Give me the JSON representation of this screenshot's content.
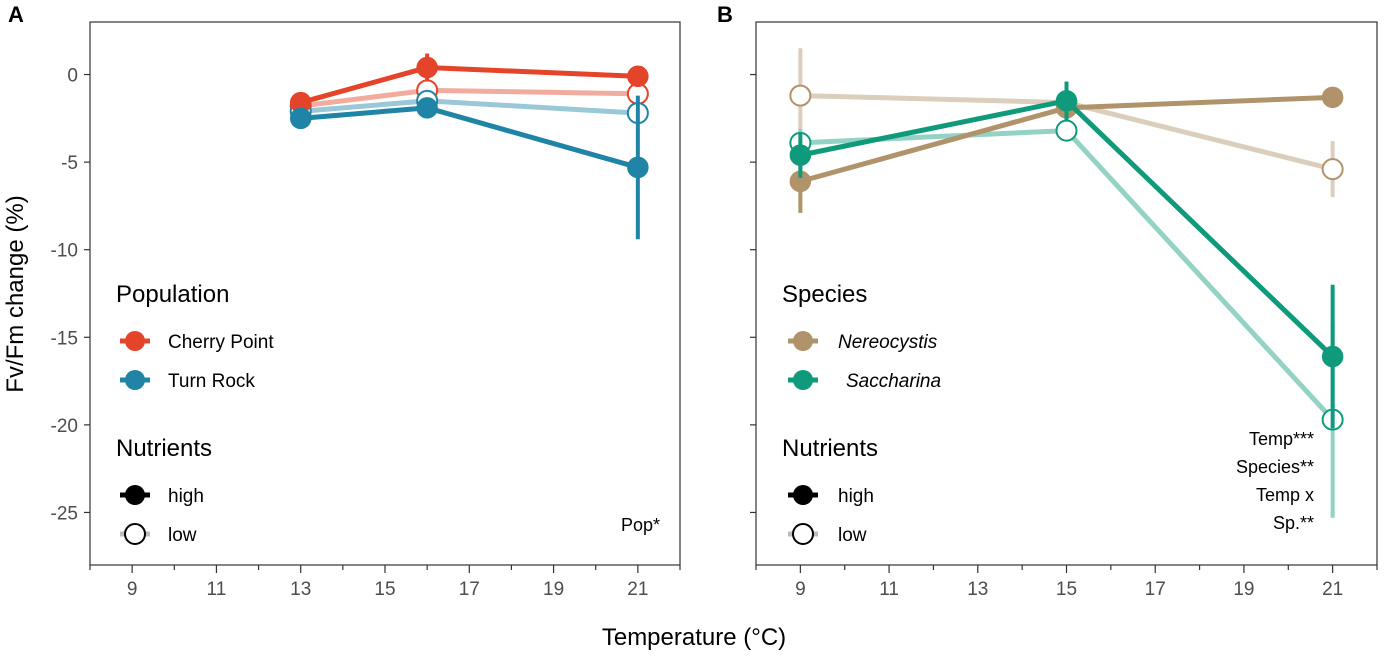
{
  "chart_data": [
    {
      "type": "line",
      "panel_label": "A",
      "xlim": [
        8,
        22
      ],
      "ylim": [
        -28,
        3
      ],
      "x_ticks": [
        9,
        11,
        13,
        15,
        17,
        19,
        21
      ],
      "y_ticks": [
        0,
        -5,
        -10,
        -15,
        -20,
        -25
      ],
      "x_tick_labels": [
        "9",
        "11",
        "13",
        "15",
        "17",
        "19",
        "21"
      ],
      "y_tick_labels": [
        "0",
        "-5",
        "-10",
        "-15",
        "-20",
        "-25"
      ],
      "group_legend_title": "Population",
      "nutrient_legend_title": "Nutrients",
      "nutrient_labels": {
        "high": "high",
        "low": "low"
      },
      "annotation": [
        "Pop*"
      ],
      "groups": [
        {
          "name": "Cherry Point",
          "color": "#E3442A",
          "italic": false
        },
        {
          "name": "Turn Rock",
          "color": "#1F84A6",
          "italic": false
        }
      ],
      "series": [
        {
          "group": "Cherry Point",
          "nutrients": "low",
          "x": [
            13,
            16,
            21
          ],
          "values": [
            -1.8,
            -0.9,
            -1.1
          ],
          "err": [
            0.6,
            0.5,
            0.4
          ]
        },
        {
          "group": "Turn Rock",
          "nutrients": "low",
          "x": [
            13,
            16,
            21
          ],
          "values": [
            -2.1,
            -1.5,
            -2.2
          ],
          "err": [
            0.4,
            0.4,
            0.3
          ]
        },
        {
          "group": "Cherry Point",
          "nutrients": "high",
          "x": [
            13,
            16,
            21
          ],
          "values": [
            -1.6,
            0.4,
            -0.1
          ],
          "err": [
            0.6,
            0.8,
            0.4
          ]
        },
        {
          "group": "Turn Rock",
          "nutrients": "high",
          "x": [
            13,
            16,
            21
          ],
          "values": [
            -2.5,
            -1.9,
            -5.3
          ],
          "err": [
            0.5,
            0.5,
            4.1
          ]
        }
      ]
    },
    {
      "type": "line",
      "panel_label": "B",
      "xlim": [
        8,
        22
      ],
      "ylim": [
        -28,
        3
      ],
      "x_ticks": [
        9,
        11,
        13,
        15,
        17,
        19,
        21
      ],
      "y_ticks": [
        0,
        -5,
        -10,
        -15,
        -20,
        -25
      ],
      "x_tick_labels": [
        "9",
        "11",
        "13",
        "15",
        "17",
        "19",
        "21"
      ],
      "group_legend_title": "Species",
      "nutrient_legend_title": "Nutrients",
      "nutrient_labels": {
        "high": "high",
        "low": "low"
      },
      "annotation": [
        "Temp***",
        "Species**",
        "Temp x",
        "Sp.**"
      ],
      "groups": [
        {
          "name": "Nereocystis",
          "color": "#B0936A",
          "italic": true
        },
        {
          "name": "Saccharina",
          "color": "#0F9A7B",
          "italic": true
        }
      ],
      "series": [
        {
          "group": "Nereocystis",
          "nutrients": "low",
          "x": [
            9,
            15,
            21
          ],
          "values": [
            -1.2,
            -1.6,
            -5.4
          ],
          "err": [
            2.7,
            0.4,
            1.6
          ]
        },
        {
          "group": "Saccharina",
          "nutrients": "low",
          "x": [
            9,
            15,
            21
          ],
          "values": [
            -3.9,
            -3.2,
            -19.7
          ],
          "err": [
            0.8,
            0.5,
            5.6
          ]
        },
        {
          "group": "Nereocystis",
          "nutrients": "high",
          "x": [
            9,
            15,
            21
          ],
          "values": [
            -6.1,
            -1.9,
            -1.3
          ],
          "err": [
            1.8,
            0.4,
            0.3
          ]
        },
        {
          "group": "Saccharina",
          "nutrients": "high",
          "x": [
            9,
            15,
            21
          ],
          "values": [
            -4.6,
            -1.5,
            -16.1
          ],
          "err": [
            1.3,
            1.1,
            4.1
          ]
        }
      ]
    }
  ],
  "shared": {
    "xlabel": "Temperature (°C)",
    "ylabel": "Fv/Fm change (%)"
  }
}
